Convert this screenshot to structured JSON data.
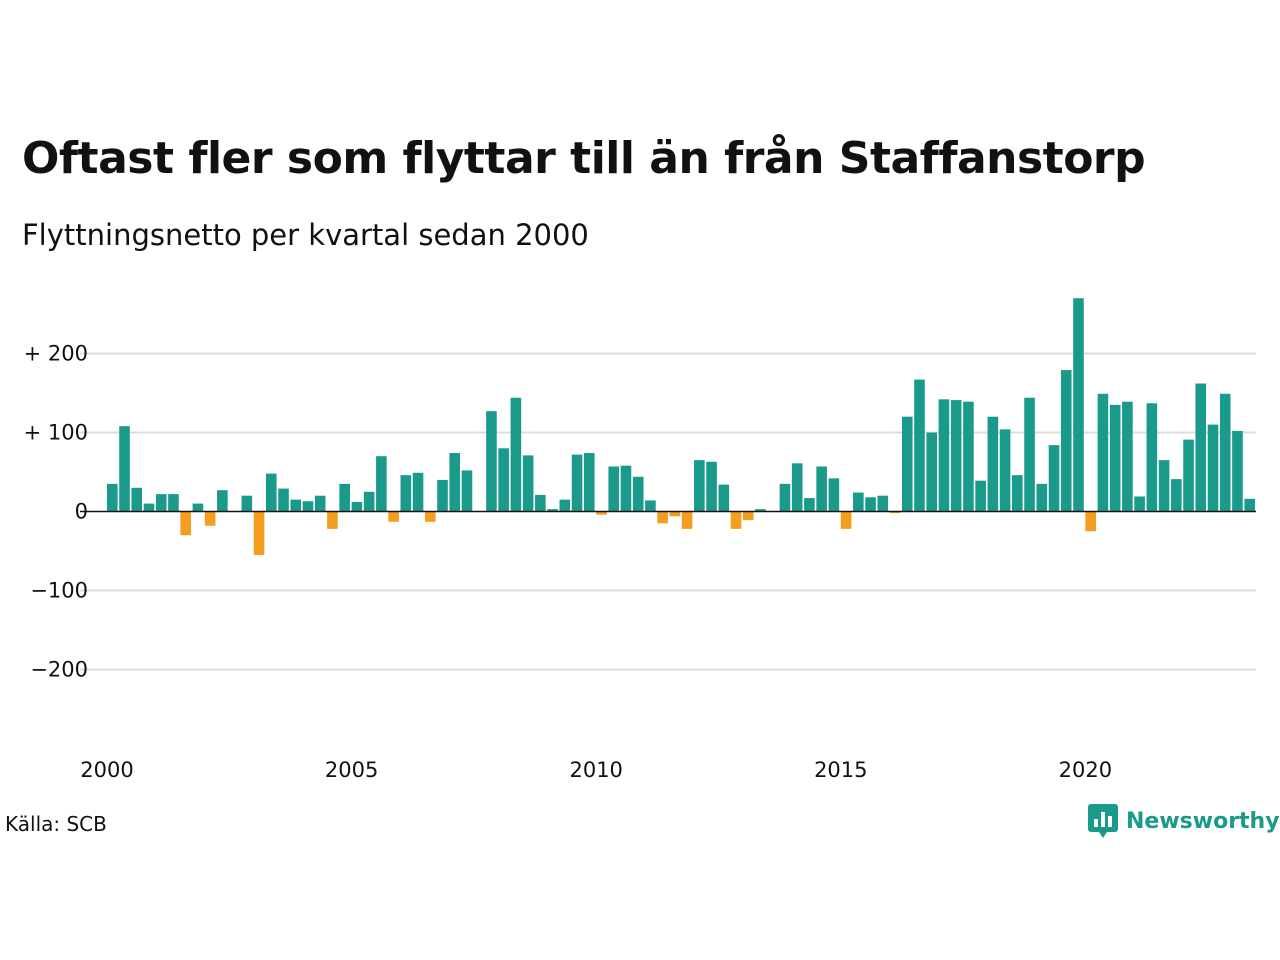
{
  "title": "Oftast fler som flyttar till än från Staffanstorp",
  "subtitle": "Flyttningsnetto per kvartal sedan 2000",
  "source": "Källa: SCB",
  "brand": {
    "name": "Newsworthy",
    "icon": "newsworthy-logo-icon",
    "color": "#1a9a8a"
  },
  "colors": {
    "positive": "#1a9a8a",
    "negative": "#f59d1e",
    "grid": "#dddddd",
    "zero": "#111111"
  },
  "chart_data": {
    "type": "bar",
    "x_start": "2000 Q1",
    "x_ticks": [
      "2000",
      "2005",
      "2010",
      "2015",
      "2020"
    ],
    "y_ticks": [
      {
        "value": 200,
        "label": "+ 200"
      },
      {
        "value": 100,
        "label": "+ 100"
      },
      {
        "value": 0,
        "label": "0"
      },
      {
        "value": -100,
        "label": "−100"
      },
      {
        "value": -200,
        "label": "−200"
      }
    ],
    "ylim": [
      -280,
      270
    ],
    "grid": true,
    "values": [
      35,
      108,
      30,
      10,
      22,
      22,
      -30,
      10,
      -18,
      27,
      0,
      20,
      -55,
      48,
      29,
      15,
      13,
      20,
      -22,
      35,
      12,
      25,
      70,
      -13,
      46,
      49,
      -13,
      40,
      74,
      52,
      0,
      127,
      80,
      144,
      71,
      21,
      3,
      15,
      72,
      74,
      -4,
      57,
      58,
      44,
      14,
      -15,
      -6,
      -22,
      65,
      63,
      34,
      -22,
      -11,
      3,
      0,
      35,
      61,
      17,
      57,
      42,
      -22,
      24,
      18,
      20,
      -2,
      120,
      167,
      100,
      142,
      141,
      139,
      39,
      120,
      104,
      46,
      144,
      35,
      84,
      179,
      270,
      -25,
      149,
      135,
      139,
      19,
      137,
      65,
      41,
      91,
      162,
      110,
      149,
      102,
      16
    ]
  }
}
